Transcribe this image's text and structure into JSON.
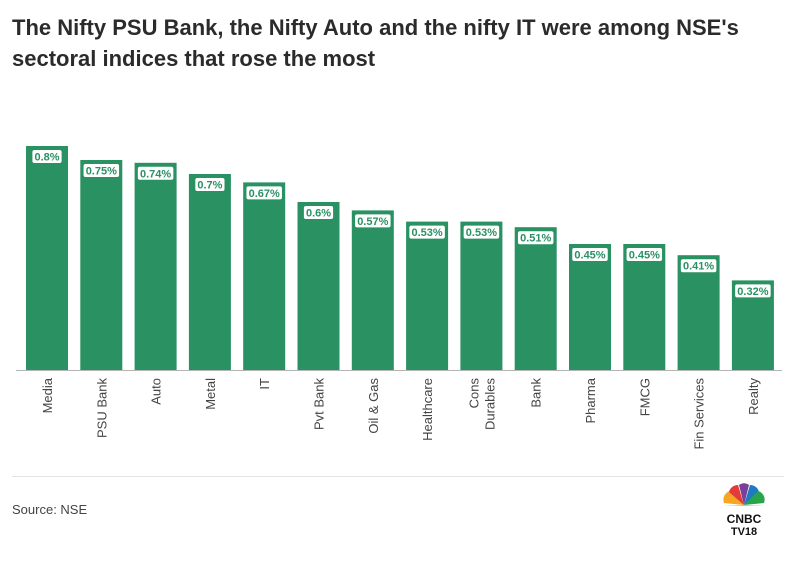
{
  "title": "The Nifty PSU Bank, the Nifty Auto and the nifty IT were among NSE's sectoral indices that rose the most",
  "source": "Source: NSE",
  "logo": {
    "line1": "CNBC",
    "line2": "TV18"
  },
  "colors": {
    "bar": "#2a9163",
    "label_bg": "#ffffff",
    "label_text": "#2a9163",
    "axis": "#444444"
  },
  "chart_data": {
    "type": "bar",
    "categories": [
      "Media",
      "PSU Bank",
      "Auto",
      "Metal",
      "IT",
      "Pvt Bank",
      "Oil & Gas",
      "Healthcare",
      "Cons Durables",
      "Bank",
      "Pharma",
      "FMCG",
      "Fin Services",
      "Realty"
    ],
    "values": [
      0.8,
      0.75,
      0.74,
      0.7,
      0.67,
      0.6,
      0.57,
      0.53,
      0.53,
      0.51,
      0.45,
      0.45,
      0.41,
      0.32
    ],
    "data_labels": [
      "0.8%",
      "0.75%",
      "0.74%",
      "0.7%",
      "0.67%",
      "0.6%",
      "0.57%",
      "0.53%",
      "0.53%",
      "0.51%",
      "0.45%",
      "0.45%",
      "0.41%",
      "0.32%"
    ],
    "ylim": [
      0,
      0.8
    ],
    "grid": false,
    "legend": "none",
    "xlabel": "",
    "ylabel": ""
  }
}
